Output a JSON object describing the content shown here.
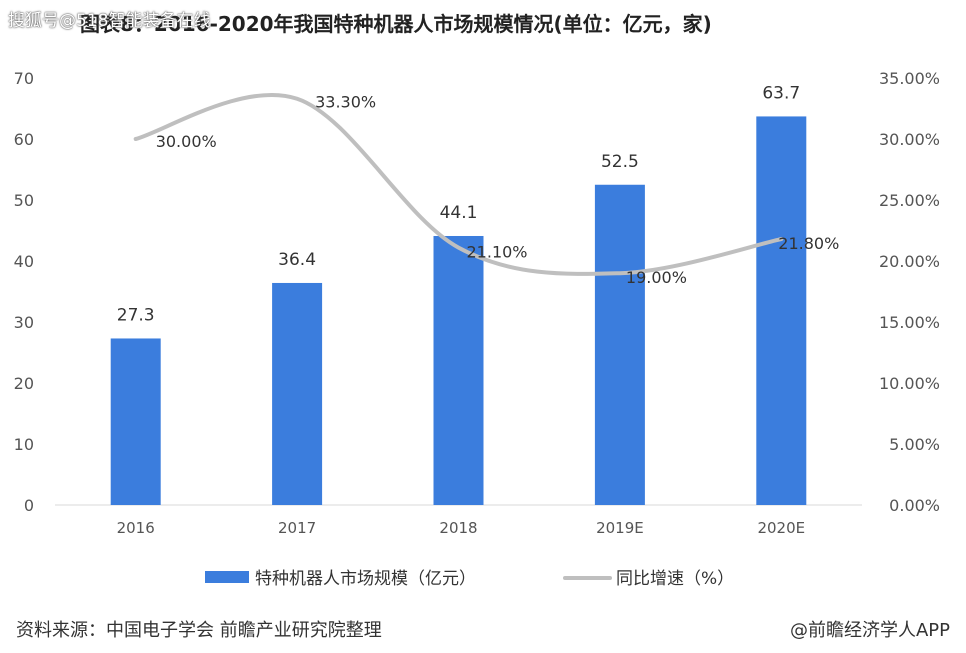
{
  "watermark": "搜狐号@518智能装备在线",
  "footer": {
    "source": "资料来源：中国电子学会 前瞻产业研究院整理",
    "brand": "@前瞻经济学人APP"
  },
  "colors": {
    "bar": "#3b7ddd",
    "line": "#bfbfbf",
    "axis_text": "#555555",
    "label_text": "#333333"
  },
  "chart_data": {
    "type": "bar",
    "title": "图表8：2016-2020年我国特种机器人市场规模情况(单位：亿元，家)",
    "categories": [
      "2016",
      "2017",
      "2018",
      "2019E",
      "2020E"
    ],
    "series": [
      {
        "name": "特种机器人市场规模（亿元）",
        "type": "bar",
        "axis": "left",
        "values": [
          27.3,
          36.4,
          44.1,
          52.5,
          63.7
        ],
        "labels": [
          "27.3",
          "36.4",
          "44.1",
          "52.5",
          "63.7"
        ]
      },
      {
        "name": "同比增速（%）",
        "type": "line",
        "axis": "right",
        "smooth": true,
        "values": [
          30.0,
          33.3,
          21.1,
          19.0,
          21.8
        ],
        "labels": [
          "30.00%",
          "33.30%",
          "21.10%",
          "19.00%",
          "21.80%"
        ]
      }
    ],
    "y_left": {
      "min": 0,
      "max": 70,
      "ticks": [
        "0",
        "10",
        "20",
        "30",
        "40",
        "50",
        "60",
        "70"
      ]
    },
    "y_right": {
      "min": 0,
      "max": 35,
      "ticks": [
        "0.00%",
        "5.00%",
        "10.00%",
        "15.00%",
        "20.00%",
        "25.00%",
        "30.00%",
        "35.00%"
      ]
    },
    "grid": false,
    "legend": "bottom"
  }
}
